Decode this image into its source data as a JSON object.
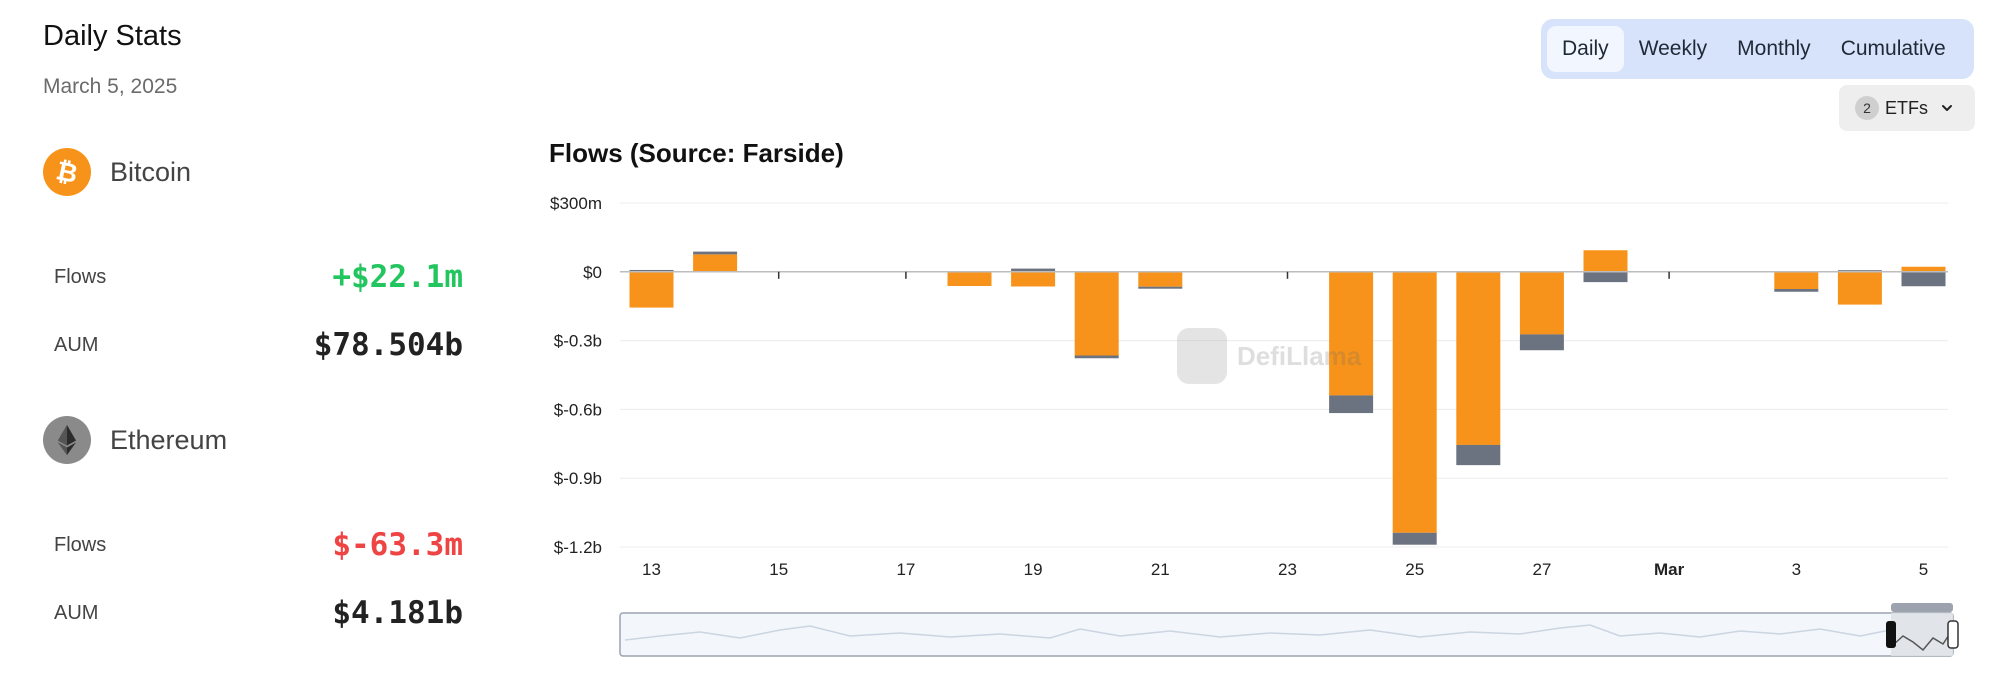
{
  "stats": {
    "title": "Daily Stats",
    "date": "March 5, 2025",
    "bitcoin": {
      "name": "Bitcoin",
      "flows_label": "Flows",
      "flows_value": "+$22.1m",
      "aum_label": "AUM",
      "aum_value": "$78.504b",
      "icon": "bitcoin-icon",
      "color": "#f7931a"
    },
    "ethereum": {
      "name": "Ethereum",
      "flows_label": "Flows",
      "flows_value": "$-63.3m",
      "aum_label": "AUM",
      "aum_value": "$4.181b",
      "icon": "ethereum-icon",
      "color": "#8a8a8a"
    }
  },
  "tabs": [
    "Daily",
    "Weekly",
    "Monthly",
    "Cumulative"
  ],
  "active_tab": "Daily",
  "etf_filter": {
    "count": "2",
    "label": "ETFs",
    "icon": "chevron-down-icon"
  },
  "watermark": "DefiLlama",
  "colors": {
    "bitcoin": "#f7931a",
    "ethereum": "#6b7280",
    "positive": "#22c55e",
    "negative": "#ef4444",
    "tab_bg": "#d7e3fb"
  },
  "chart_data": {
    "type": "bar",
    "stacked": true,
    "title": "Flows (Source: Farside)",
    "xlabel": "",
    "ylabel": "",
    "ylim": [
      -1.2,
      0.3
    ],
    "y_unit": "billions USD",
    "y_ticks": [
      {
        "value": 0.3,
        "label": "$300m"
      },
      {
        "value": 0,
        "label": "$0"
      },
      {
        "value": -0.3,
        "label": "$-0.3b"
      },
      {
        "value": -0.6,
        "label": "$-0.6b"
      },
      {
        "value": -0.9,
        "label": "$-0.9b"
      },
      {
        "value": -1.2,
        "label": "$-1.2b"
      }
    ],
    "categories": [
      "13",
      "14",
      "15",
      "16",
      "17",
      "18",
      "19",
      "20",
      "21",
      "22",
      "23",
      "24",
      "25",
      "26",
      "27",
      "28",
      "Mar",
      "2",
      "3",
      "4",
      "5"
    ],
    "x_tick_labels": [
      {
        "category": "13",
        "label": "13",
        "bold": false
      },
      {
        "category": "15",
        "label": "15",
        "bold": false
      },
      {
        "category": "17",
        "label": "17",
        "bold": false
      },
      {
        "category": "19",
        "label": "19",
        "bold": false
      },
      {
        "category": "21",
        "label": "21",
        "bold": false
      },
      {
        "category": "23",
        "label": "23",
        "bold": false
      },
      {
        "category": "25",
        "label": "25",
        "bold": false
      },
      {
        "category": "27",
        "label": "27",
        "bold": false
      },
      {
        "category": "Mar",
        "label": "Mar",
        "bold": true
      },
      {
        "category": "3",
        "label": "3",
        "bold": false
      },
      {
        "category": "5",
        "label": "5",
        "bold": false
      }
    ],
    "series": [
      {
        "name": "Bitcoin",
        "color": "#f7931a",
        "values": [
          -0.156,
          0.076,
          null,
          null,
          null,
          -0.062,
          -0.064,
          -0.365,
          -0.065,
          null,
          null,
          -0.539,
          -1.138,
          -0.755,
          -0.273,
          0.094,
          null,
          null,
          -0.075,
          -0.143,
          0.022
        ]
      },
      {
        "name": "Ethereum",
        "color": "#6b7280",
        "values": [
          0.008,
          0.012,
          null,
          null,
          null,
          0.0,
          0.014,
          -0.012,
          -0.006,
          null,
          null,
          -0.077,
          -0.052,
          -0.088,
          -0.069,
          -0.045,
          null,
          null,
          -0.012,
          0.007,
          -0.063
        ]
      }
    ]
  }
}
